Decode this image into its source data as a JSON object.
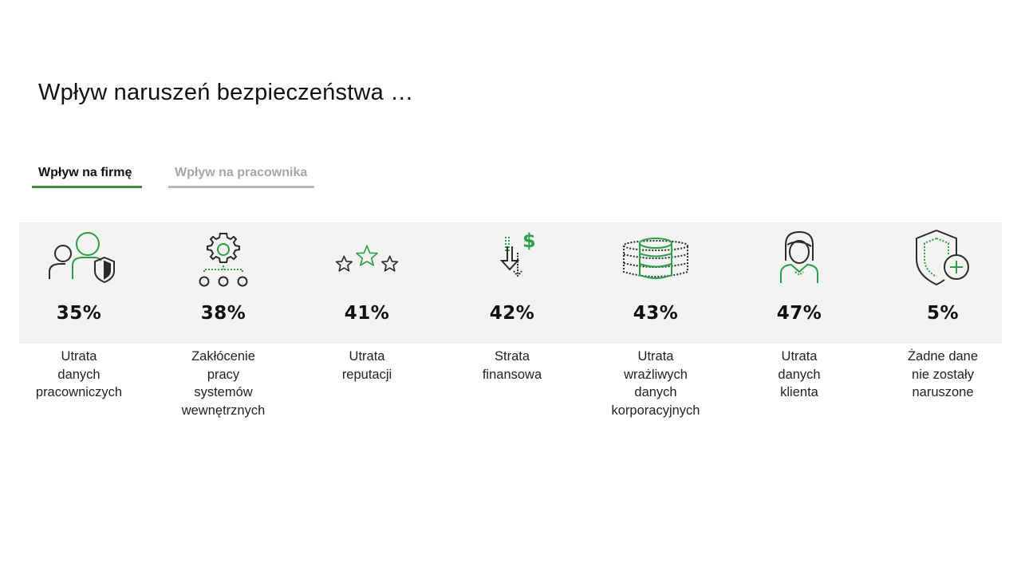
{
  "page": {
    "title": "Wpływ naruszeń bezpieczeństwa …"
  },
  "tabs": [
    {
      "label": "Wpływ na firmę",
      "active": true
    },
    {
      "label": "Wpływ na pracownika",
      "active": false
    }
  ],
  "colors": {
    "accent_green": "#2e9e4a",
    "tab_active_underline": "#3d8b3d",
    "tab_inactive_text": "#a6a6a6",
    "band_background": "#f3f3f2"
  },
  "stats": [
    {
      "icon": "users-shield-icon",
      "value": "35%",
      "label": "Utrata\ndanych\npracowniczych"
    },
    {
      "icon": "gear-network-icon",
      "value": "38%",
      "label": "Zakłócenie\npracy\nsystemów\nwewnętrznych"
    },
    {
      "icon": "stars-rating-icon",
      "value": "41%",
      "label": "Utrata\nreputacji"
    },
    {
      "icon": "dollar-down-icon",
      "value": "42%",
      "label": "Strata\nfinansowa"
    },
    {
      "icon": "database-icon",
      "value": "43%",
      "label": "Utrata\nwrażliwych\ndanych\nkorporacyjnych"
    },
    {
      "icon": "customer-person-icon",
      "value": "47%",
      "label": "Utrata\ndanych\nklienta"
    },
    {
      "icon": "shield-plus-icon",
      "value": "5%",
      "label": "Żadne dane\nnie zostały\nnaruszone"
    }
  ]
}
